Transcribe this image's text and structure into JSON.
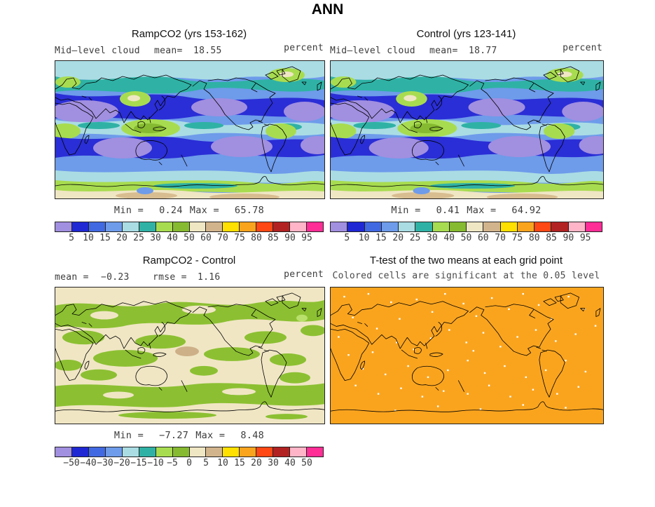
{
  "figure_title": "ANN",
  "palette": [
    "#a18fe0",
    "#2028d4",
    "#4169e1",
    "#6e9bea",
    "#aadce4",
    "#2fb2a5",
    "#a8dc50",
    "#86ba30",
    "#efe6c4",
    "#d2b48c",
    "#ffe000",
    "#faa41e",
    "#ff4814",
    "#b22222",
    "#ffb5c7",
    "#ff2d96"
  ],
  "map_colors": {
    "ttest_fill": "#faa41e",
    "coastline": "#000000",
    "diff_base": "#f0e6c4",
    "diff_green": "#8cc032",
    "diff_tan": "#cdb087"
  },
  "panels": {
    "ramp": {
      "title": "RampCO2 (yrs 153-162)",
      "field": "Mid–level cloud",
      "mean_label": "mean=",
      "mean_value": "18.55",
      "units": "percent",
      "min_label": "Min =",
      "min_value": "0.24",
      "max_label": "Max =",
      "max_value": "65.78",
      "ticks": [
        "5",
        "10",
        "15",
        "20",
        "25",
        "30",
        "40",
        "50",
        "60",
        "70",
        "75",
        "80",
        "85",
        "90",
        "95"
      ]
    },
    "control": {
      "title": "Control (yrs 123-141)",
      "field": "Mid–level cloud",
      "mean_label": "mean=",
      "mean_value": "18.77",
      "units": "percent",
      "min_label": "Min =",
      "min_value": "0.41",
      "max_label": "Max =",
      "max_value": "64.92",
      "ticks": [
        "5",
        "10",
        "15",
        "20",
        "25",
        "30",
        "40",
        "50",
        "60",
        "70",
        "75",
        "80",
        "85",
        "90",
        "95"
      ]
    },
    "diff": {
      "title": "RampCO2 - Control",
      "mean_label": "mean =",
      "mean_value": "−0.23",
      "rmse_label": "rmse =",
      "rmse_value": "1.16",
      "units": "percent",
      "min_label": "Min =",
      "min_value": "−7.27",
      "max_label": "Max =",
      "max_value": "8.48",
      "ticks": [
        "−50",
        "−40",
        "−30",
        "−20",
        "−15",
        "−10",
        "−5",
        "0",
        "5",
        "10",
        "15",
        "20",
        "30",
        "40",
        "50"
      ]
    },
    "ttest": {
      "title": "T-test of the two means at each grid point",
      "subtitle": "Colored cells are significant at the 0.05 level"
    }
  },
  "chart_data": [
    {
      "type": "heatmap",
      "title": "RampCO2 (yrs 153-162)",
      "variable": "Mid-level cloud",
      "units": "percent",
      "season": "ANN",
      "projection": "global lat-lon map, Pacific-centered",
      "mean": 18.55,
      "min": 0.24,
      "max": 65.78,
      "colorbar_levels": [
        5,
        10,
        15,
        20,
        25,
        30,
        40,
        50,
        60,
        70,
        75,
        80,
        85,
        90,
        95
      ],
      "legend_position": "below"
    },
    {
      "type": "heatmap",
      "title": "Control (yrs 123-141)",
      "variable": "Mid-level cloud",
      "units": "percent",
      "season": "ANN",
      "projection": "global lat-lon map, Pacific-centered",
      "mean": 18.77,
      "min": 0.41,
      "max": 64.92,
      "colorbar_levels": [
        5,
        10,
        15,
        20,
        25,
        30,
        40,
        50,
        60,
        70,
        75,
        80,
        85,
        90,
        95
      ],
      "legend_position": "below"
    },
    {
      "type": "heatmap",
      "title": "RampCO2 - Control",
      "variable": "Mid-level cloud difference",
      "units": "percent",
      "season": "ANN",
      "projection": "global lat-lon map, Pacific-centered",
      "mean": -0.23,
      "rmse": 1.16,
      "min": -7.27,
      "max": 8.48,
      "colorbar_levels": [
        -50,
        -40,
        -30,
        -20,
        -15,
        -10,
        -5,
        0,
        5,
        10,
        15,
        20,
        30,
        40,
        50
      ],
      "legend_position": "below"
    },
    {
      "type": "heatmap",
      "title": "T-test of the two means at each grid point",
      "subtitle": "Colored cells are significant at the 0.05 level",
      "projection": "global lat-lon map, Pacific-centered",
      "note": "nearly all grid cells significant (filled orange); scattered non-significant cells shown white"
    }
  ]
}
